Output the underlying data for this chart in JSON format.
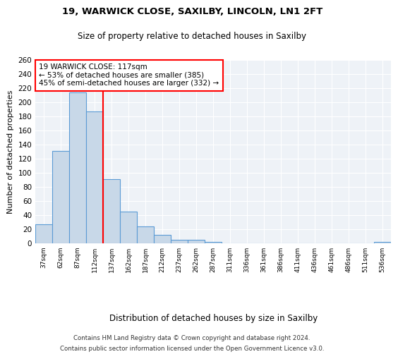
{
  "title1": "19, WARWICK CLOSE, SAXILBY, LINCOLN, LN1 2FT",
  "title2": "Size of property relative to detached houses in Saxilby",
  "xlabel": "Distribution of detached houses by size in Saxilby",
  "ylabel": "Number of detached properties",
  "categories": [
    "37sqm",
    "62sqm",
    "87sqm",
    "112sqm",
    "137sqm",
    "162sqm",
    "187sqm",
    "212sqm",
    "237sqm",
    "262sqm",
    "287sqm",
    "311sqm",
    "336sqm",
    "361sqm",
    "386sqm",
    "411sqm",
    "436sqm",
    "461sqm",
    "486sqm",
    "511sqm",
    "536sqm"
  ],
  "values": [
    27,
    131,
    214,
    187,
    91,
    45,
    24,
    12,
    5,
    5,
    2,
    0,
    0,
    0,
    0,
    0,
    0,
    0,
    0,
    0,
    2
  ],
  "bar_color": "#c8d8e8",
  "bar_edge_color": "#5b9bd5",
  "annotation_title": "19 WARWICK CLOSE: 117sqm",
  "annotation_line1": "← 53% of detached houses are smaller (385)",
  "annotation_line2": "45% of semi-detached houses are larger (332) →",
  "footer1": "Contains HM Land Registry data © Crown copyright and database right 2024.",
  "footer2": "Contains public sector information licensed under the Open Government Licence v3.0.",
  "plot_background": "#eef2f7",
  "ylim": [
    0,
    260
  ],
  "yticks": [
    0,
    20,
    40,
    60,
    80,
    100,
    120,
    140,
    160,
    180,
    200,
    220,
    240,
    260
  ],
  "red_line_index": 3.5
}
